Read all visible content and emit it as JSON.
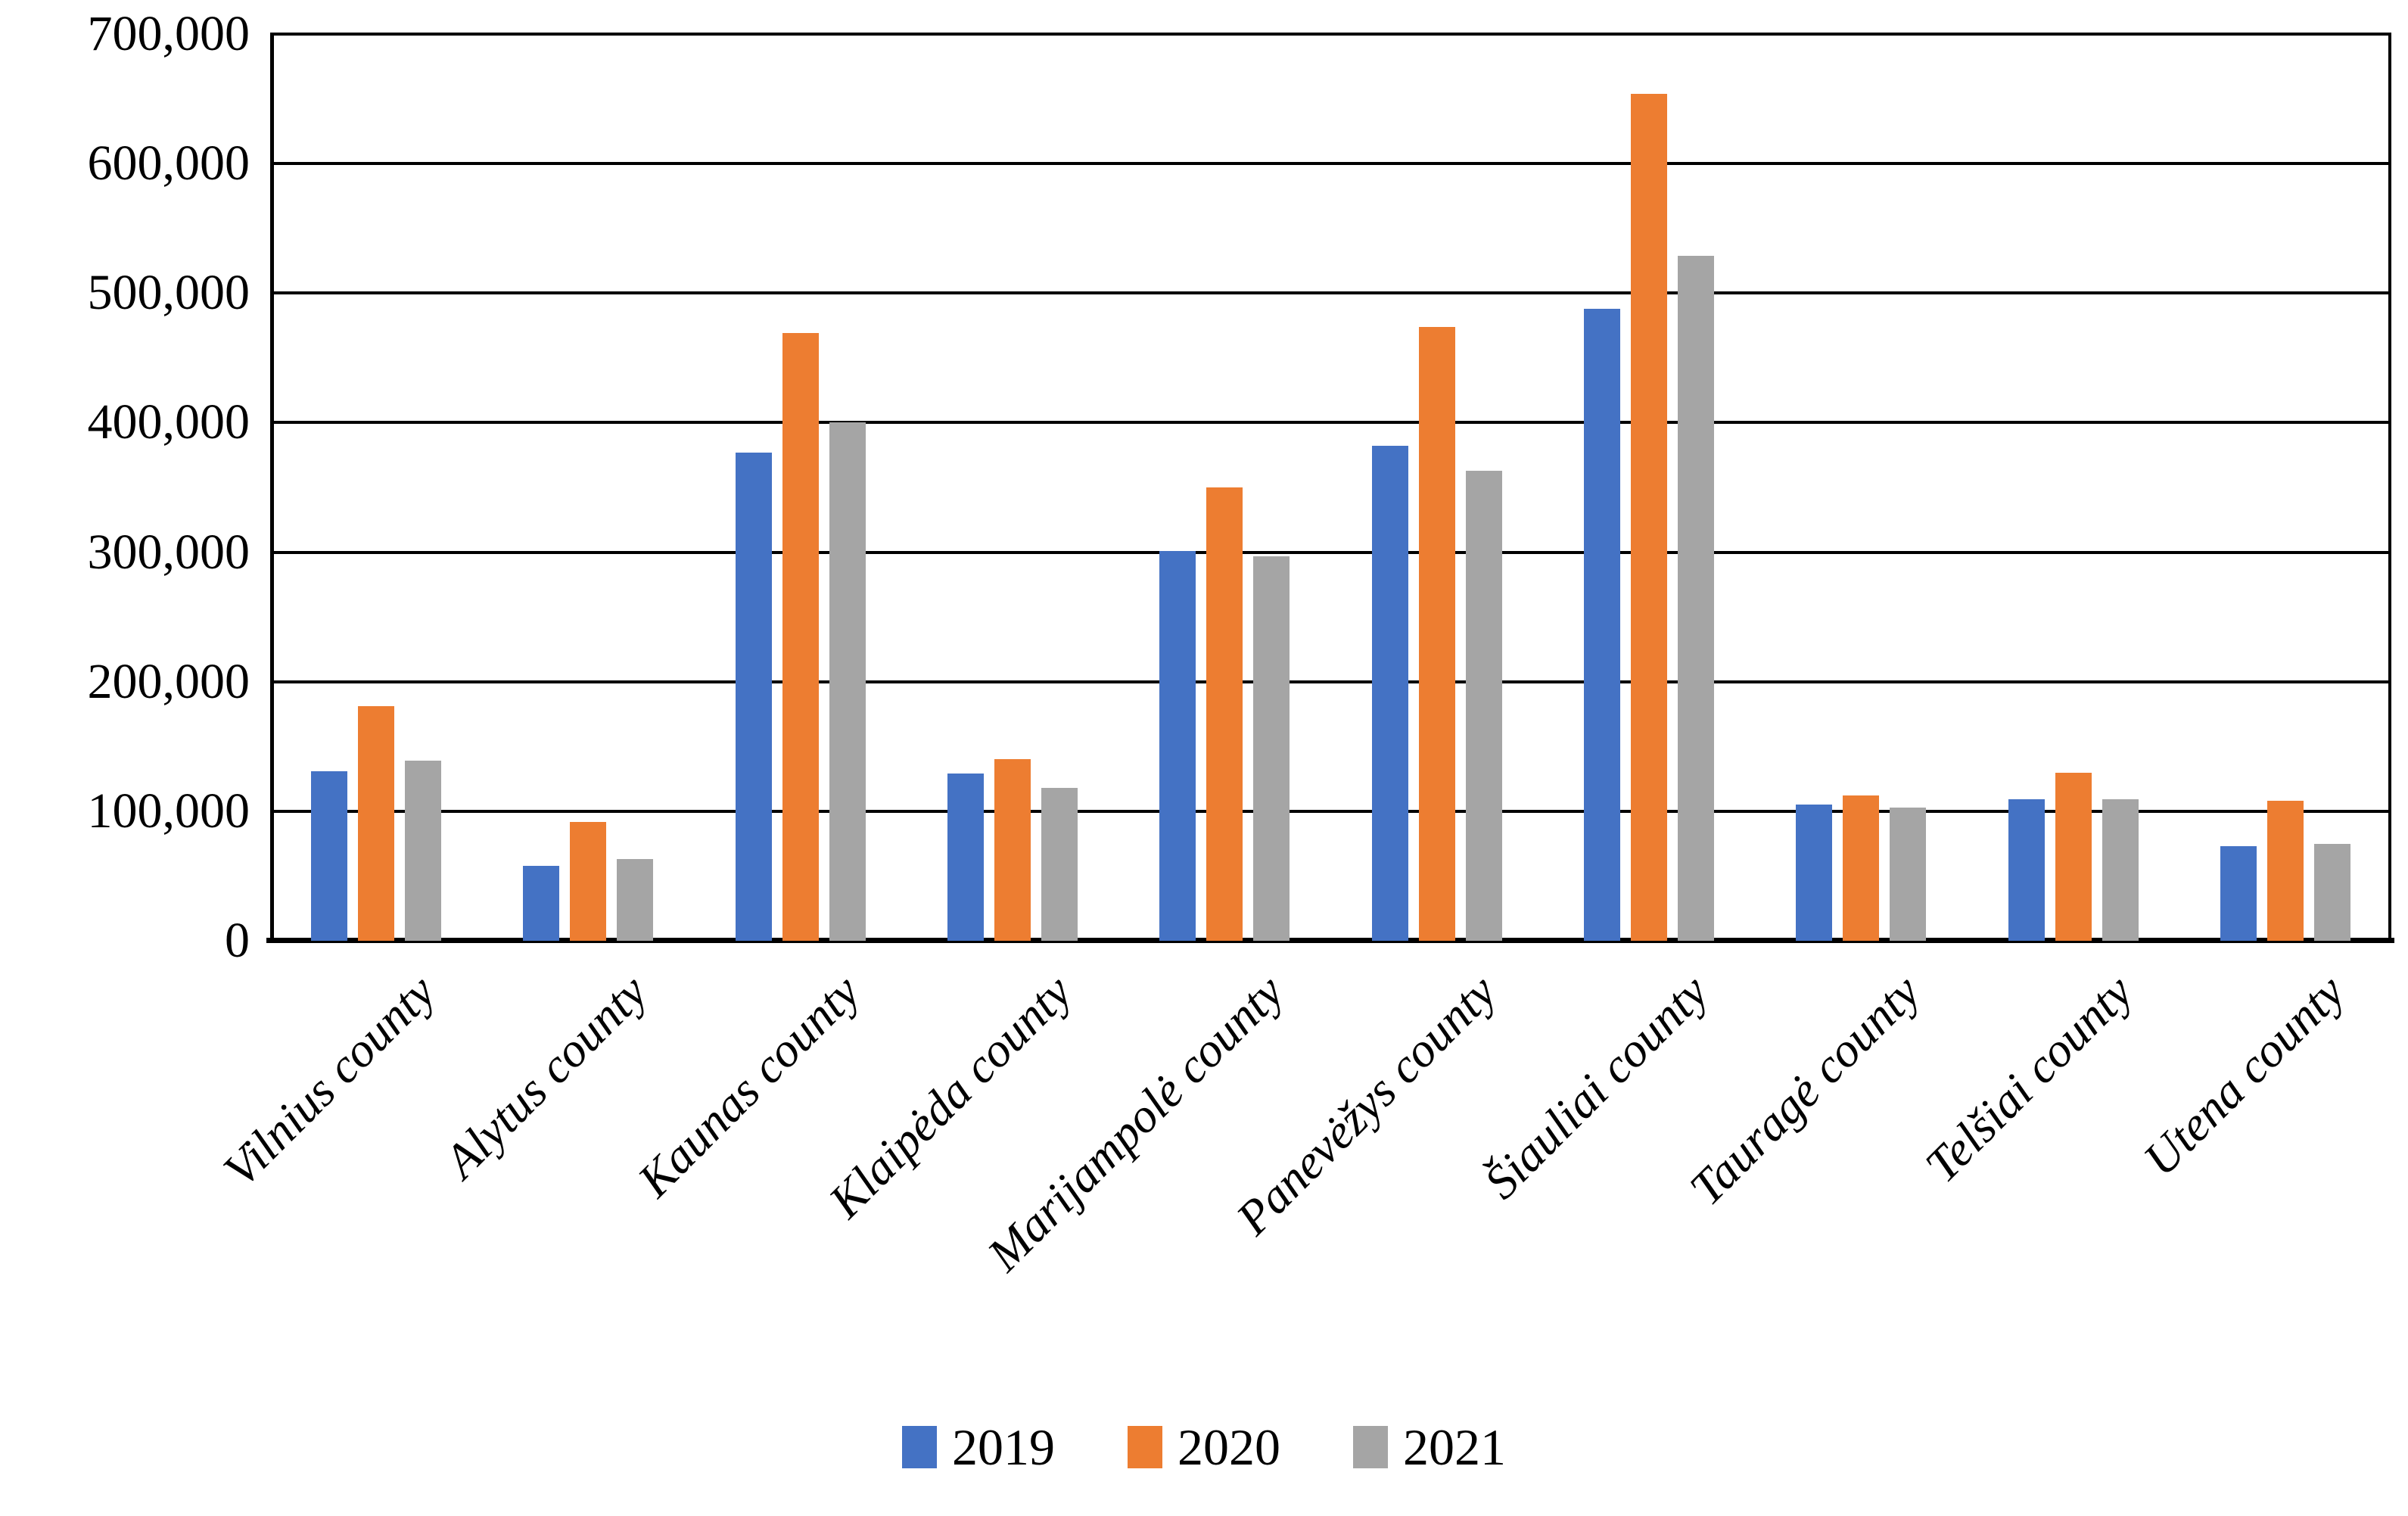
{
  "chart_data": {
    "type": "bar",
    "title": "",
    "xlabel": "",
    "ylabel": "",
    "categories": [
      "Vilnius county",
      "Alytus county",
      "Kaunas county",
      "Klaipėda county",
      "Marijampolė county",
      "Panevėžys county",
      "Šiauliai county",
      "Tauragė county",
      "Telšiai county",
      "Utena county"
    ],
    "series": [
      {
        "name": "2019",
        "color": "#4472C4",
        "values": [
          131000,
          58000,
          377000,
          129000,
          301000,
          382000,
          488000,
          105000,
          109000,
          73000
        ]
      },
      {
        "name": "2020",
        "color": "#ED7D31",
        "values": [
          181000,
          92000,
          469000,
          140000,
          350000,
          474000,
          654000,
          112000,
          130000,
          108000
        ]
      },
      {
        "name": "2021",
        "color": "#A5A5A5",
        "values": [
          139000,
          63000,
          400000,
          118000,
          297000,
          363000,
          529000,
          103000,
          109000,
          75000
        ]
      }
    ],
    "ylim": [
      0,
      700000
    ],
    "ytick_step": 100000,
    "ytick_labels": [
      "0",
      "100,000",
      "200,000",
      "300,000",
      "400,000",
      "500,000",
      "600,000",
      "700,000"
    ],
    "grid": true,
    "gridline_color": "#000000",
    "background_color": "#ffffff",
    "legend_position": "bottom",
    "legend_entries": [
      "2019",
      "2020",
      "2021"
    ]
  }
}
